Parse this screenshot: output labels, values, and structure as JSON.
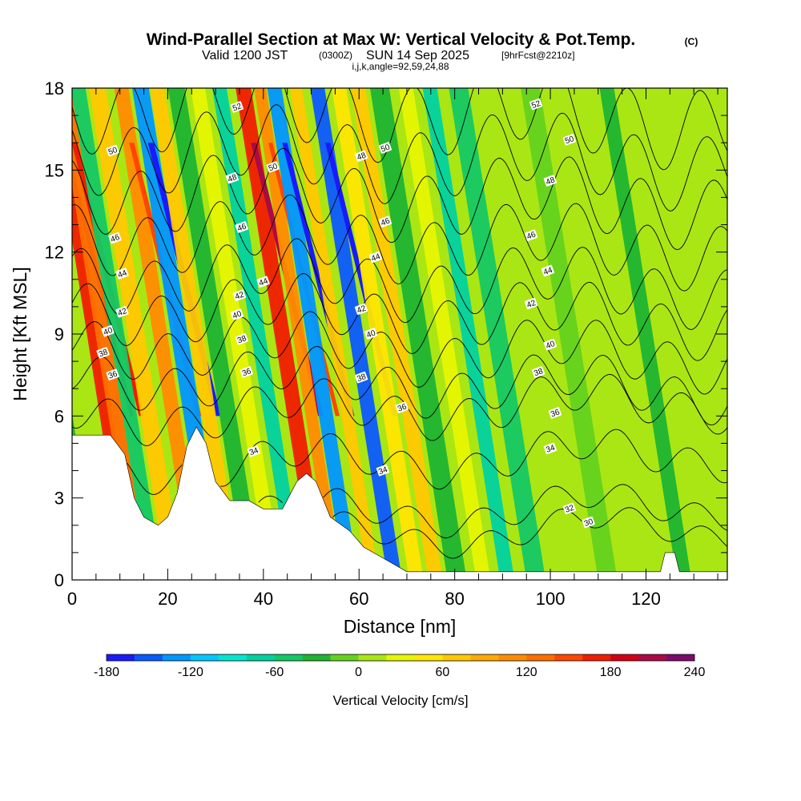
{
  "title": {
    "main": "Wind-Parallel Section at Max W: Vertical Velocity & Pot.Temp.",
    "copyright": "(C)",
    "valid_prefix": "Valid 1200 JST",
    "valid_utc": "(0300Z)",
    "valid_date": "SUN 14 Sep 2025",
    "forecast": "[9hrFcst@2210z]",
    "indices": "i,j,k,angle=92,59,24,88"
  },
  "chart_data": {
    "type": "heatmap",
    "title": "Wind-Parallel Section at Max W: Vertical Velocity & Pot.Temp.",
    "xlabel": "Distance [nm]",
    "ylabel": "Height [Kft MSL]",
    "xlim": [
      0,
      137
    ],
    "ylim": [
      0,
      18
    ],
    "x_ticks": [
      0,
      20,
      40,
      60,
      80,
      100,
      120
    ],
    "x_tick_labels": [
      "0",
      "20",
      "40",
      "60",
      "80",
      "100",
      "120"
    ],
    "y_ticks": [
      0,
      3,
      6,
      9,
      12,
      15,
      18
    ],
    "y_tick_labels": [
      "0",
      "3",
      "6",
      "9",
      "12",
      "15",
      "18"
    ],
    "terrain": [
      [
        0,
        5.3
      ],
      [
        8,
        5.3
      ],
      [
        11,
        4.6
      ],
      [
        13,
        3.0
      ],
      [
        15,
        2.3
      ],
      [
        18,
        2.0
      ],
      [
        20,
        2.3
      ],
      [
        22,
        3.2
      ],
      [
        24,
        4.9
      ],
      [
        26,
        5.6
      ],
      [
        28,
        5.0
      ],
      [
        30,
        3.6
      ],
      [
        33,
        2.9
      ],
      [
        37,
        2.9
      ],
      [
        40,
        2.6
      ],
      [
        44,
        2.6
      ],
      [
        47,
        3.6
      ],
      [
        49,
        3.9
      ],
      [
        51,
        3.6
      ],
      [
        54,
        2.3
      ],
      [
        58,
        1.8
      ],
      [
        61,
        1.2
      ],
      [
        64,
        0.9
      ],
      [
        70,
        0.3
      ],
      [
        123,
        0.3
      ],
      [
        124,
        1.0
      ],
      [
        126,
        1.0
      ],
      [
        127,
        0.3
      ],
      [
        137,
        0.3
      ]
    ],
    "vertical_velocity_bands": [
      {
        "x": 4,
        "width": 3,
        "w": -30
      },
      {
        "x": 12.5,
        "width": 2.6,
        "w": 170
      },
      {
        "x": 14.5,
        "width": 3,
        "w": 120
      },
      {
        "x": 17.5,
        "width": 3,
        "w": -60
      },
      {
        "x": 21.5,
        "width": 3.5,
        "w": 60
      },
      {
        "x": 26.5,
        "width": 3,
        "w": 100
      },
      {
        "x": 30.5,
        "width": 3.5,
        "w": -140
      },
      {
        "x": 34,
        "width": 3,
        "w": 70
      },
      {
        "x": 38,
        "width": 3.5,
        "w": -40
      },
      {
        "x": 42.5,
        "width": 3,
        "w": 20
      },
      {
        "x": 47,
        "width": 3,
        "w": -80
      },
      {
        "x": 52,
        "width": 3.2,
        "w": 170
      },
      {
        "x": 55.5,
        "width": 2.5,
        "w": 110
      },
      {
        "x": 58.5,
        "width": 3,
        "w": -130
      },
      {
        "x": 63,
        "width": 2.5,
        "w": 60
      },
      {
        "x": 67.5,
        "width": 3,
        "w": -150
      },
      {
        "x": 72,
        "width": 3,
        "w": 40
      },
      {
        "x": 76,
        "width": 3,
        "w": 60
      },
      {
        "x": 80.5,
        "width": 4,
        "w": -40
      },
      {
        "x": 86,
        "width": 3,
        "w": 30
      },
      {
        "x": 91,
        "width": 3,
        "w": -70
      },
      {
        "x": 97,
        "width": 4,
        "w": -50
      },
      {
        "x": 104,
        "width": 5,
        "w": 15
      },
      {
        "x": 112,
        "width": 4,
        "w": -20
      },
      {
        "x": 120,
        "width": 3.5,
        "w": 15
      },
      {
        "x": 128,
        "width": 3,
        "w": -40
      },
      {
        "x": 133,
        "width": 3,
        "w": 10
      }
    ],
    "pot_temp_contours": [
      {
        "value": 30,
        "base_height": 1.4
      },
      {
        "value": 32,
        "base_height": 2.2
      },
      {
        "value": 34,
        "base_height": 4.1
      },
      {
        "value": 36,
        "base_height": 6.0
      },
      {
        "value": 38,
        "base_height": 7.5
      },
      {
        "value": 40,
        "base_height": 8.7
      },
      {
        "value": 42,
        "base_height": 10.0
      },
      {
        "value": 44,
        "base_height": 11.2
      },
      {
        "value": 46,
        "base_height": 12.7
      },
      {
        "value": 48,
        "base_height": 14.3
      },
      {
        "value": 50,
        "base_height": 15.8
      },
      {
        "value": 52,
        "base_height": 17.4
      }
    ],
    "contour_label_positions": [
      {
        "text": "52",
        "x": 34.5,
        "y": 17.3
      },
      {
        "text": "52",
        "x": 97,
        "y": 17.4
      },
      {
        "text": "50",
        "x": 8.5,
        "y": 15.7
      },
      {
        "text": "50",
        "x": 42,
        "y": 15.1
      },
      {
        "text": "50",
        "x": 65.5,
        "y": 15.8
      },
      {
        "text": "50",
        "x": 104,
        "y": 16.1
      },
      {
        "text": "48",
        "x": 33.5,
        "y": 14.7
      },
      {
        "text": "48",
        "x": 60.5,
        "y": 15.5
      },
      {
        "text": "48",
        "x": 100,
        "y": 14.6
      },
      {
        "text": "46",
        "x": 35.5,
        "y": 12.9
      },
      {
        "text": "46",
        "x": 65.5,
        "y": 13.1
      },
      {
        "text": "46",
        "x": 96,
        "y": 12.6
      },
      {
        "text": "46",
        "x": 9,
        "y": 12.5
      },
      {
        "text": "44",
        "x": 10.5,
        "y": 11.2
      },
      {
        "text": "44",
        "x": 40,
        "y": 10.9
      },
      {
        "text": "44",
        "x": 63.5,
        "y": 11.8
      },
      {
        "text": "44",
        "x": 99.5,
        "y": 11.3
      },
      {
        "text": "42",
        "x": 10.5,
        "y": 9.8
      },
      {
        "text": "42",
        "x": 35,
        "y": 10.4
      },
      {
        "text": "42",
        "x": 60.5,
        "y": 9.9
      },
      {
        "text": "42",
        "x": 96,
        "y": 10.1
      },
      {
        "text": "40",
        "x": 7.5,
        "y": 9.1
      },
      {
        "text": "40",
        "x": 34.5,
        "y": 9.7
      },
      {
        "text": "40",
        "x": 62.5,
        "y": 9.0
      },
      {
        "text": "40",
        "x": 100,
        "y": 8.6
      },
      {
        "text": "38",
        "x": 6.5,
        "y": 8.3
      },
      {
        "text": "38",
        "x": 35.5,
        "y": 8.8
      },
      {
        "text": "38",
        "x": 60.5,
        "y": 7.4
      },
      {
        "text": "38",
        "x": 97.5,
        "y": 7.6
      },
      {
        "text": "36",
        "x": 8.5,
        "y": 7.5
      },
      {
        "text": "36",
        "x": 36.5,
        "y": 7.6
      },
      {
        "text": "36",
        "x": 69,
        "y": 6.3
      },
      {
        "text": "36",
        "x": 101,
        "y": 6.1
      },
      {
        "text": "34",
        "x": 38,
        "y": 4.7
      },
      {
        "text": "34",
        "x": 65,
        "y": 4.0
      },
      {
        "text": "34",
        "x": 100,
        "y": 4.8
      },
      {
        "text": "32",
        "x": 104,
        "y": 2.6
      },
      {
        "text": "30",
        "x": 108,
        "y": 2.1
      }
    ]
  },
  "colorbar": {
    "title": "Vertical Velocity [cm/s]",
    "min": -180,
    "max": 240,
    "step": 20,
    "tick_values": [
      -180,
      -120,
      -60,
      0,
      60,
      120,
      180,
      240
    ],
    "tick_labels": [
      "-180",
      "-120",
      "-60",
      "0",
      "60",
      "120",
      "180",
      "240"
    ],
    "colors": [
      "#1a1aff",
      "#0a5aff",
      "#0096ff",
      "#00c8ff",
      "#00e6d2",
      "#00d2a0",
      "#14c864",
      "#1eb432",
      "#64d21e",
      "#aae614",
      "#e6f500",
      "#ffe600",
      "#ffc800",
      "#ffaa00",
      "#ff8c00",
      "#ff6e00",
      "#ff4600",
      "#f01e00",
      "#d20014",
      "#aa0a46",
      "#7d0a6e"
    ]
  },
  "colors": {
    "terrain": "#ffffff",
    "contour": "#000000",
    "label_box": "#ffffff"
  }
}
